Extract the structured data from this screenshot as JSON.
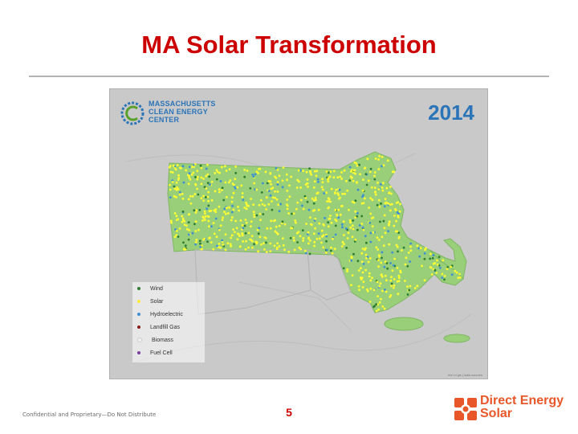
{
  "slide": {
    "title": "MA Solar Transformation",
    "footer_note": "Confidential and Proprietary—Do Not Distribute",
    "page_number": "5"
  },
  "map": {
    "org_logo_lines": [
      "MASSACHUSETTS",
      "CLEAN ENERGY",
      "CENTER"
    ],
    "year": "2014",
    "credit": "esri  ci  gis  |  data  sources",
    "legend": [
      {
        "label": "Wind",
        "color": "#2e7d32"
      },
      {
        "label": "Solar",
        "color": "#ffeb3b"
      },
      {
        "label": "Hydroelectric",
        "color": "#3f8fd0"
      },
      {
        "label": "Landfill Gas",
        "color": "#8b1a1a"
      },
      {
        "label": "Biomass",
        "color": "#f2f2f2"
      },
      {
        "label": "Fuel Cell",
        "color": "#7b3fa0"
      }
    ],
    "colors": {
      "land": "#98cf78",
      "water": "#c8c8c8",
      "solar_dots": "#ffff33",
      "brand_accent": "#2b74b8"
    }
  },
  "brand": {
    "line1": "Direct Energy",
    "line2": "Solar",
    "color": "#e8572a"
  }
}
